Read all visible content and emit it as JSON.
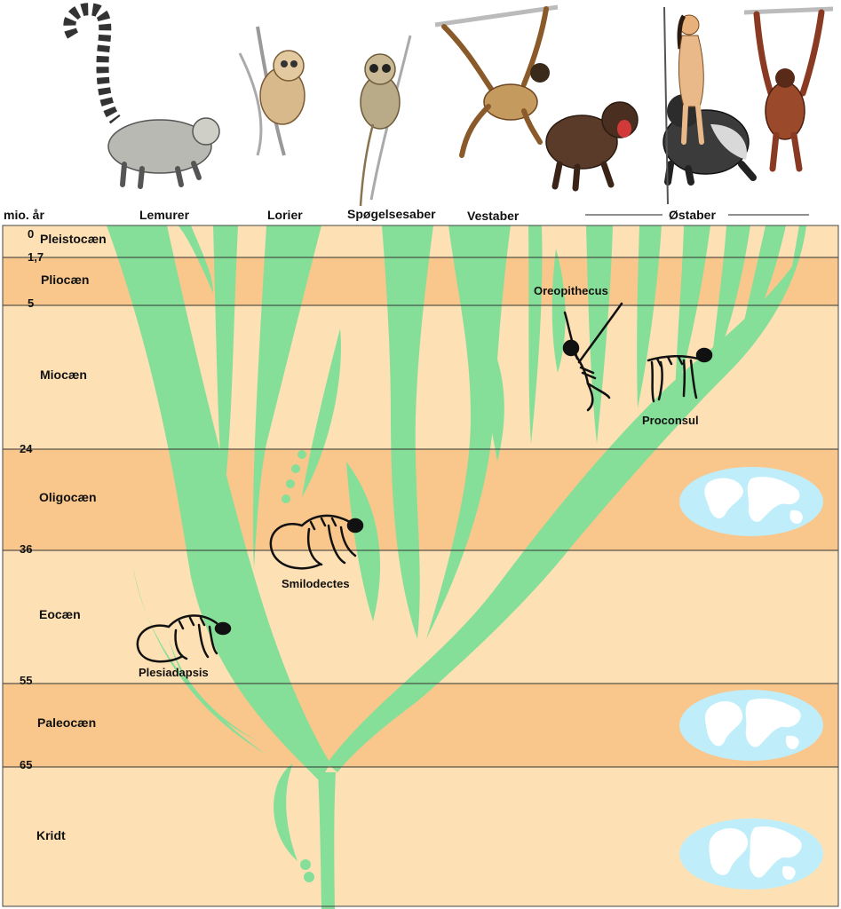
{
  "axis_title": "mio. år",
  "groups": [
    {
      "key": "lemurer",
      "label": "Lemurer"
    },
    {
      "key": "lorier",
      "label": "Lorier"
    },
    {
      "key": "spogelsesaber",
      "label": "Spøgelsesaber"
    },
    {
      "key": "vestaber",
      "label": "Vestaber"
    },
    {
      "key": "ostaber",
      "label": "Østaber"
    }
  ],
  "ages": [
    "0",
    "1,7",
    "5",
    "24",
    "36",
    "55",
    "65"
  ],
  "epochs": [
    "Pleistocæn",
    "Pliocæn",
    "Miocæn",
    "Oligocæn",
    "Eocæn",
    "Paleocæn",
    "Kridt"
  ],
  "fossils": [
    "Oreopithecus",
    "Proconsul",
    "Smilodectes",
    "Plesiadapsis"
  ],
  "colors": {
    "band_light": "#fde1b4",
    "band_dark": "#f9c68b",
    "tree": "#86df98",
    "globe_ocean": "#bfeefa",
    "globe_land": "#ffffff",
    "ink": "#111111"
  },
  "animals": [
    "lemur",
    "loris",
    "tarsier",
    "spider-monkey",
    "mandrill",
    "gorilla",
    "human",
    "gibbon"
  ]
}
